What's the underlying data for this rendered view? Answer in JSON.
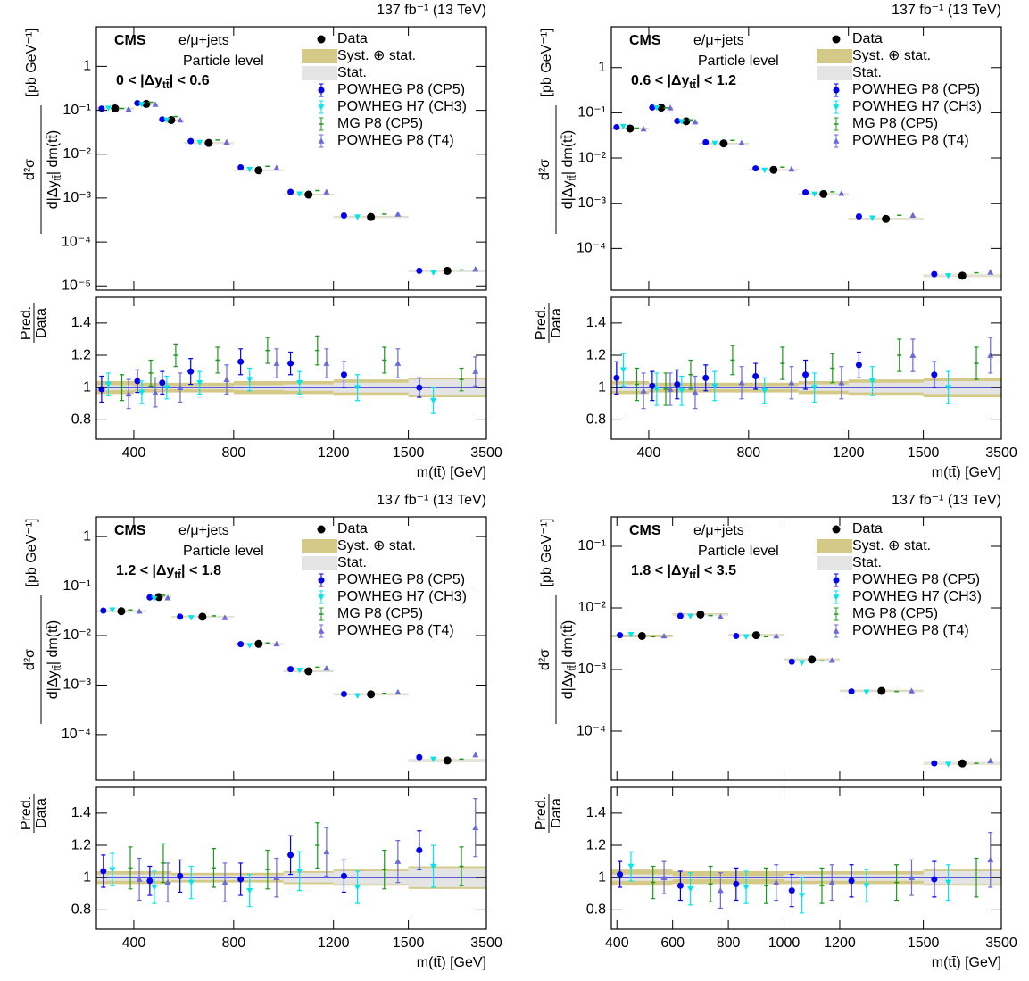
{
  "chart_data": [
    {
      "type": "scatter",
      "lumi": "137 fb⁻¹ (13 TeV)",
      "experiment": "CMS",
      "channel": "e/μ+jets",
      "level": "Particle level",
      "region": [
        "0 < |Δy",
        "tt̄",
        "| < 0.6"
      ],
      "ylabel": {
        "numerator": "d²σ",
        "denominator": [
          "d|Δy",
          "tt̄",
          "| dm(tt̄)"
        ],
        "unit": "[pb GeV⁻¹]"
      },
      "xlabel": "m(tt̄) [GeV]",
      "log_y": true,
      "bins": [
        250,
        400,
        500,
        600,
        800,
        1000,
        1200,
        1500,
        3500
      ],
      "xlim": [
        250,
        3500
      ],
      "xticks": [
        400,
        800,
        1200,
        1500,
        3500
      ],
      "ylim": [
        8e-06,
        8
      ],
      "yticks": [
        {
          "value": 1e-05,
          "label": "10⁻⁵"
        },
        {
          "value": 0.0001,
          "label": "10⁻⁴"
        },
        {
          "value": 0.001,
          "label": "10⁻³"
        },
        {
          "value": 0.01,
          "label": "10⁻²"
        },
        {
          "value": 0.1,
          "label": "10⁻¹"
        },
        1
      ],
      "series": [
        {
          "name": "Data",
          "color": "#000000",
          "marker": "circle",
          "values": [
            0.11,
            0.14,
            0.06,
            0.018,
            0.0043,
            0.0012,
            0.00037,
            2.2e-05
          ]
        },
        {
          "name": "POWHEG P8 (CP5)",
          "color": "#0000ee",
          "marker": "circle",
          "values": [
            0.109,
            0.146,
            0.062,
            0.0198,
            0.005,
            0.00138,
            0.0004,
            2.2e-05
          ],
          "ratio": [
            0.99,
            1.04,
            1.03,
            1.1,
            1.16,
            1.15,
            1.08,
            1.0
          ],
          "ratio_err": [
            0.08,
            0.07,
            0.07,
            0.08,
            0.08,
            0.07,
            0.08,
            0.06
          ]
        },
        {
          "name": "POWHEG H7 (CH3)",
          "color": "#00e5ee",
          "marker": "triangle-down",
          "values": [
            0.112,
            0.136,
            0.06,
            0.0185,
            0.0045,
            0.00124,
            0.00037,
            2e-05
          ],
          "ratio": [
            1.02,
            0.97,
            1.0,
            1.03,
            1.05,
            1.03,
            1.0,
            0.92
          ],
          "ratio_err": [
            0.07,
            0.07,
            0.07,
            0.07,
            0.07,
            0.07,
            0.08,
            0.08
          ]
        },
        {
          "name": "MG P8 (CP5)",
          "color": "#1a9a1a",
          "marker": "dash",
          "values": [
            0.11,
            0.153,
            0.072,
            0.021,
            0.0053,
            0.00148,
            0.00043,
            2.3e-05
          ],
          "ratio": [
            1.0,
            1.09,
            1.2,
            1.17,
            1.23,
            1.23,
            1.17,
            1.05
          ],
          "ratio_err": [
            0.08,
            0.08,
            0.07,
            0.08,
            0.08,
            0.09,
            0.08,
            0.07
          ]
        },
        {
          "name": "POWHEG P8 (T4)",
          "color": "#6a6ad8",
          "marker": "triangle-up",
          "values": [
            0.106,
            0.136,
            0.06,
            0.0189,
            0.0049,
            0.00138,
            0.00043,
            2.4e-05
          ],
          "ratio": [
            0.96,
            0.97,
            1.0,
            1.05,
            1.15,
            1.15,
            1.15,
            1.1
          ],
          "ratio_err": [
            0.09,
            0.09,
            0.09,
            0.09,
            0.09,
            0.09,
            0.09,
            0.09
          ]
        }
      ],
      "bands": [
        {
          "name": "Syst. ⊕ stat.",
          "color": "#d4c987",
          "rel": [
            0.04,
            0.03,
            0.03,
            0.03,
            0.04,
            0.04,
            0.05,
            0.06
          ]
        },
        {
          "name": "Stat.",
          "color": "#e4e4e4",
          "rel": [
            0.015,
            0.01,
            0.01,
            0.01,
            0.015,
            0.02,
            0.03,
            0.05
          ]
        }
      ],
      "ratio": {
        "ylabel": [
          "Pred.",
          "Data"
        ],
        "ylim": [
          0.68,
          1.56
        ],
        "yticks": [
          0.8,
          1,
          1.2,
          1.4
        ],
        "reference_line": 1,
        "reference_color": "#2b2bd0"
      }
    },
    {
      "type": "scatter",
      "lumi": "137 fb⁻¹ (13 TeV)",
      "experiment": "CMS",
      "channel": "e/μ+jets",
      "level": "Particle level",
      "region": [
        "0.6 < |Δy",
        "tt̄",
        "| < 1.2"
      ],
      "ylabel": {
        "numerator": "d²σ",
        "denominator": [
          "d|Δy",
          "tt̄",
          "| dm(tt̄)"
        ],
        "unit": "[pb GeV⁻¹]"
      },
      "xlabel": "m(tt̄) [GeV]",
      "log_y": true,
      "bins": [
        250,
        400,
        500,
        600,
        800,
        1000,
        1200,
        1500,
        3500
      ],
      "xlim": [
        250,
        3500
      ],
      "xticks": [
        400,
        800,
        1200,
        1500,
        3500
      ],
      "ylim": [
        1.2e-05,
        8
      ],
      "yticks": [
        {
          "value": 0.0001,
          "label": "10⁻⁴"
        },
        {
          "value": 0.001,
          "label": "10⁻³"
        },
        {
          "value": 0.01,
          "label": "10⁻²"
        },
        {
          "value": 0.1,
          "label": "10⁻¹"
        },
        1
      ],
      "series": [
        {
          "name": "Data",
          "color": "#000000",
          "marker": "circle",
          "values": [
            0.045,
            0.13,
            0.065,
            0.021,
            0.0055,
            0.0016,
            0.00045,
            2.5e-05
          ]
        },
        {
          "name": "POWHEG P8 (CP5)",
          "color": "#0000ee",
          "marker": "circle",
          "values": [
            0.048,
            0.131,
            0.066,
            0.0223,
            0.0059,
            0.00173,
            0.00051,
            2.7e-05
          ],
          "ratio": [
            1.06,
            1.01,
            1.02,
            1.06,
            1.07,
            1.08,
            1.14,
            1.08
          ],
          "ratio_err": [
            0.1,
            0.09,
            0.09,
            0.08,
            0.08,
            0.09,
            0.08,
            0.08
          ]
        },
        {
          "name": "POWHEG H7 (CH3)",
          "color": "#00e5ee",
          "marker": "triangle-down",
          "values": [
            0.05,
            0.129,
            0.064,
            0.0212,
            0.0054,
            0.0016,
            0.00047,
            2.5e-05
          ],
          "ratio": [
            1.11,
            0.99,
            0.98,
            1.01,
            0.98,
            1.0,
            1.04,
            1.0
          ],
          "ratio_err": [
            0.1,
            0.1,
            0.09,
            0.09,
            0.08,
            0.09,
            0.09,
            0.1
          ]
        },
        {
          "name": "MG P8 (CP5)",
          "color": "#1a9a1a",
          "marker": "dash",
          "values": [
            0.046,
            0.129,
            0.07,
            0.0246,
            0.0063,
            0.00179,
            0.00054,
            2.9e-05
          ],
          "ratio": [
            1.02,
            0.99,
            1.08,
            1.17,
            1.15,
            1.12,
            1.2,
            1.15
          ],
          "ratio_err": [
            0.1,
            0.1,
            0.09,
            0.09,
            0.1,
            0.09,
            0.1,
            0.1
          ]
        },
        {
          "name": "POWHEG P8 (T4)",
          "color": "#6a6ad8",
          "marker": "triangle-up",
          "values": [
            0.044,
            0.129,
            0.063,
            0.0216,
            0.0057,
            0.00165,
            0.00054,
            3e-05
          ],
          "ratio": [
            0.98,
            0.99,
            0.97,
            1.03,
            1.03,
            1.03,
            1.2,
            1.2
          ],
          "ratio_err": [
            0.11,
            0.1,
            0.1,
            0.1,
            0.1,
            0.1,
            0.1,
            0.11
          ]
        }
      ],
      "bands": [
        {
          "name": "Syst. ⊕ stat.",
          "color": "#d4c987",
          "rel": [
            0.04,
            0.03,
            0.03,
            0.03,
            0.03,
            0.04,
            0.05,
            0.06
          ]
        },
        {
          "name": "Stat.",
          "color": "#e4e4e4",
          "rel": [
            0.02,
            0.01,
            0.01,
            0.01,
            0.01,
            0.02,
            0.03,
            0.04
          ]
        }
      ],
      "ratio": {
        "ylabel": [
          "Pred.",
          "Data"
        ],
        "ylim": [
          0.68,
          1.56
        ],
        "yticks": [
          0.8,
          1,
          1.2,
          1.4
        ],
        "reference_line": 1,
        "reference_color": "#2b2bd0"
      }
    },
    {
      "type": "scatter",
      "lumi": "137 fb⁻¹ (13 TeV)",
      "experiment": "CMS",
      "channel": "e/μ+jets",
      "level": "Particle level",
      "region": [
        "1.2 < |Δy",
        "tt̄",
        "| < 1.8"
      ],
      "ylabel": {
        "numerator": "d²σ",
        "denominator": [
          "d|Δy",
          "tt̄",
          "| dm(tt̄)"
        ],
        "unit": "[pb GeV⁻¹]"
      },
      "xlabel": "m(tt̄) [GeV]",
      "log_y": true,
      "bins": [
        250,
        450,
        550,
        800,
        1000,
        1200,
        1500,
        3500
      ],
      "xlim": [
        250,
        3500
      ],
      "xticks": [
        400,
        800,
        1200,
        1500,
        3500
      ],
      "ylim": [
        1.2e-05,
        2.5
      ],
      "yticks": [
        {
          "value": 0.0001,
          "label": "10⁻⁴"
        },
        {
          "value": 0.001,
          "label": "10⁻³"
        },
        {
          "value": 0.01,
          "label": "10⁻²"
        },
        {
          "value": 0.1,
          "label": "10⁻¹"
        },
        1
      ],
      "series": [
        {
          "name": "Data",
          "color": "#000000",
          "marker": "circle",
          "values": [
            0.031,
            0.06,
            0.024,
            0.0068,
            0.0019,
            0.00065,
            3e-05
          ]
        },
        {
          "name": "POWHEG P8 (CP5)",
          "color": "#0000ee",
          "marker": "circle",
          "values": [
            0.032,
            0.059,
            0.024,
            0.0067,
            0.0021,
            0.00066,
            3.5e-05
          ],
          "ratio": [
            1.04,
            0.98,
            1.01,
            0.99,
            1.14,
            1.01,
            1.17
          ],
          "ratio_err": [
            0.1,
            0.09,
            0.1,
            0.1,
            0.12,
            0.1,
            0.12
          ]
        },
        {
          "name": "POWHEG H7 (CH3)",
          "color": "#00e5ee",
          "marker": "triangle-down",
          "values": [
            0.033,
            0.056,
            0.023,
            0.0063,
            0.002,
            0.00061,
            3.2e-05
          ],
          "ratio": [
            1.05,
            0.94,
            0.97,
            0.92,
            1.04,
            0.94,
            1.07
          ],
          "ratio_err": [
            0.1,
            0.1,
            0.1,
            0.1,
            0.12,
            0.1,
            0.13
          ]
        },
        {
          "name": "MG P8 (CP5)",
          "color": "#1a9a1a",
          "marker": "dash",
          "values": [
            0.033,
            0.065,
            0.025,
            0.0071,
            0.0023,
            0.00068,
            3.2e-05
          ],
          "ratio": [
            1.06,
            1.09,
            1.06,
            1.05,
            1.2,
            1.05,
            1.07
          ],
          "ratio_err": [
            0.13,
            0.12,
            0.12,
            0.12,
            0.14,
            0.12,
            0.12
          ]
        },
        {
          "name": "POWHEG P8 (T4)",
          "color": "#6a6ad8",
          "marker": "triangle-up",
          "values": [
            0.031,
            0.058,
            0.023,
            0.0068,
            0.0022,
            0.00072,
            3.9e-05
          ],
          "ratio": [
            0.99,
            0.97,
            0.97,
            1.0,
            1.16,
            1.1,
            1.31
          ],
          "ratio_err": [
            0.13,
            0.12,
            0.12,
            0.12,
            0.15,
            0.13,
            0.18
          ]
        }
      ],
      "bands": [
        {
          "name": "Syst. ⊕ stat.",
          "color": "#d4c987",
          "rel": [
            0.04,
            0.04,
            0.03,
            0.03,
            0.04,
            0.05,
            0.07
          ]
        },
        {
          "name": "Stat.",
          "color": "#e4e4e4",
          "rel": [
            0.02,
            0.02,
            0.015,
            0.015,
            0.03,
            0.04,
            0.06
          ]
        }
      ],
      "ratio": {
        "ylabel": [
          "Pred.",
          "Data"
        ],
        "ylim": [
          0.68,
          1.56
        ],
        "yticks": [
          0.8,
          1,
          1.2,
          1.4
        ],
        "reference_line": 1,
        "reference_color": "#2b2bd0"
      }
    },
    {
      "type": "scatter",
      "lumi": "137 fb⁻¹ (13 TeV)",
      "experiment": "CMS",
      "channel": "e/μ+jets",
      "level": "Particle level",
      "region": [
        "1.8 < |Δy",
        "tt̄",
        "| < 3.5"
      ],
      "ylabel": {
        "numerator": "d²σ",
        "denominator": [
          "d|Δy",
          "tt̄",
          "| dm(tt̄)"
        ],
        "unit": "[pb GeV⁻¹]"
      },
      "xlabel": "m(tt̄) [GeV]",
      "log_y": true,
      "bins": [
        380,
        600,
        800,
        1000,
        1200,
        1500,
        3500
      ],
      "xlim": [
        380,
        3500
      ],
      "xticks": [
        400,
        600,
        800,
        1000,
        1200,
        1500,
        3500
      ],
      "ylim": [
        1.6e-05,
        0.3
      ],
      "yticks": [
        {
          "value": 0.0001,
          "label": "10⁻⁴"
        },
        {
          "value": 0.001,
          "label": "10⁻³"
        },
        {
          "value": 0.01,
          "label": "10⁻²"
        },
        {
          "value": 0.1,
          "label": "10⁻¹"
        }
      ],
      "series": [
        {
          "name": "Data",
          "color": "#000000",
          "marker": "circle",
          "values": [
            0.0035,
            0.0078,
            0.0036,
            0.00145,
            0.00045,
            3e-05
          ]
        },
        {
          "name": "POWHEG P8 (CP5)",
          "color": "#0000ee",
          "marker": "circle",
          "values": [
            0.0036,
            0.0074,
            0.0035,
            0.00134,
            0.00044,
            3e-05
          ],
          "ratio": [
            1.02,
            0.95,
            0.96,
            0.92,
            0.98,
            0.99
          ],
          "ratio_err": [
            0.08,
            0.09,
            0.1,
            0.1,
            0.1,
            0.11
          ]
        },
        {
          "name": "POWHEG H7 (CH3)",
          "color": "#00e5ee",
          "marker": "triangle-down",
          "values": [
            0.0037,
            0.0073,
            0.0034,
            0.00129,
            0.00043,
            2.9e-05
          ],
          "ratio": [
            1.07,
            0.93,
            0.94,
            0.89,
            0.95,
            0.97
          ],
          "ratio_err": [
            0.09,
            0.1,
            0.1,
            0.11,
            0.1,
            0.11
          ]
        },
        {
          "name": "MG P8 (CP5)",
          "color": "#1a9a1a",
          "marker": "dash",
          "values": [
            0.0034,
            0.0075,
            0.0034,
            0.00138,
            0.00044,
            3e-05
          ],
          "ratio": [
            0.97,
            0.96,
            0.95,
            0.95,
            0.97,
            1.0
          ],
          "ratio_err": [
            0.1,
            0.11,
            0.11,
            0.11,
            0.11,
            0.12
          ]
        },
        {
          "name": "POWHEG P8 (T4)",
          "color": "#6a6ad8",
          "marker": "triangle-up",
          "values": [
            0.0035,
            0.0072,
            0.0035,
            0.00141,
            0.00045,
            3.3e-05
          ],
          "ratio": [
            1.0,
            0.92,
            0.97,
            0.97,
            1.0,
            1.11
          ],
          "ratio_err": [
            0.1,
            0.11,
            0.11,
            0.11,
            0.11,
            0.17
          ]
        }
      ],
      "bands": [
        {
          "name": "Syst. ⊕ stat.",
          "color": "#d4c987",
          "rel": [
            0.05,
            0.04,
            0.04,
            0.04,
            0.04,
            0.05
          ]
        },
        {
          "name": "Stat.",
          "color": "#e4e4e4",
          "rel": [
            0.02,
            0.01,
            0.01,
            0.02,
            0.02,
            0.04
          ]
        }
      ],
      "ratio": {
        "ylabel": [
          "Pred.",
          "Data"
        ],
        "ylim": [
          0.68,
          1.56
        ],
        "yticks": [
          0.8,
          1,
          1.2,
          1.4
        ],
        "reference_line": 1,
        "reference_color": "#2b2bd0"
      }
    }
  ]
}
